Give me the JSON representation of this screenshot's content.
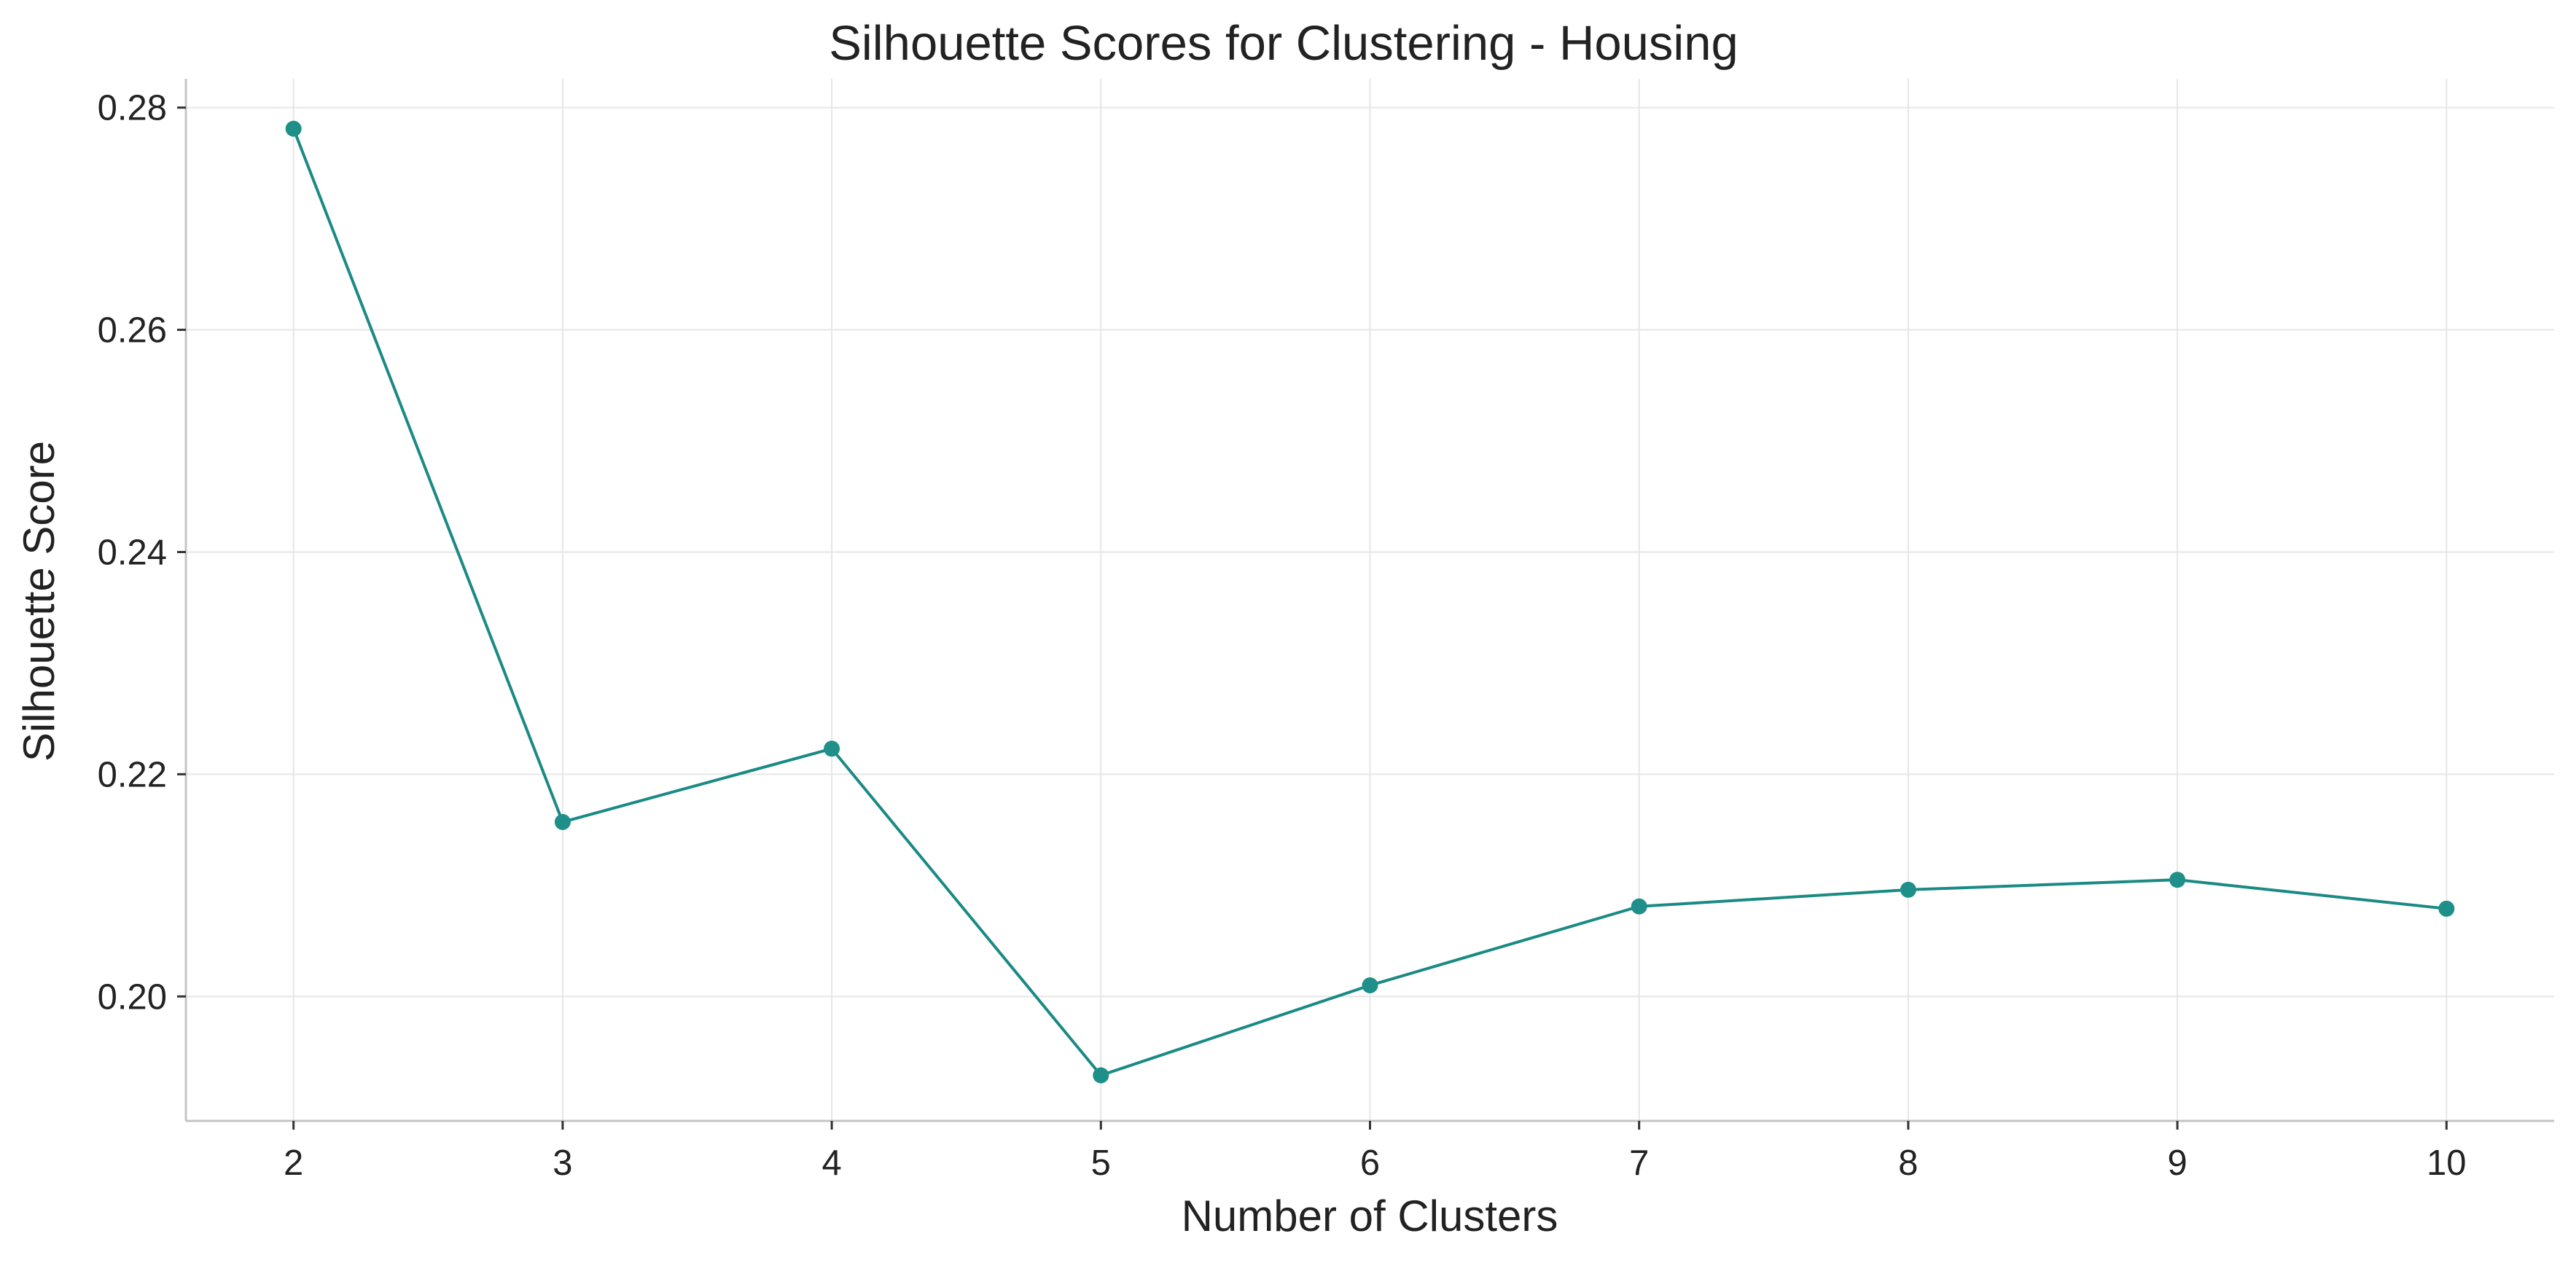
{
  "chart_data": {
    "type": "line",
    "title": "Silhouette Scores for Clustering - Housing",
    "xlabel": "Number of Clusters",
    "ylabel": "Silhouette Score",
    "x": [
      2,
      3,
      4,
      5,
      6,
      7,
      8,
      9,
      10
    ],
    "series": [
      {
        "values": [
          0.2781,
          0.2157,
          0.2223,
          0.1929,
          0.201,
          0.2081,
          0.2096,
          0.2105,
          0.2079
        ]
      }
    ],
    "xticks": [
      "2",
      "3",
      "4",
      "5",
      "6",
      "7",
      "8",
      "9",
      "10"
    ],
    "yticks": [
      "0.20",
      "0.22",
      "0.24",
      "0.26",
      "0.28"
    ],
    "ytick_values": [
      0.2,
      0.22,
      0.24,
      0.26,
      0.28
    ],
    "xlim": [
      1.6,
      10.4
    ],
    "ylim": [
      0.1888,
      0.2826
    ],
    "grid": true,
    "colors": {
      "line": "#1b8a84",
      "marker": "#1f8f89"
    }
  }
}
